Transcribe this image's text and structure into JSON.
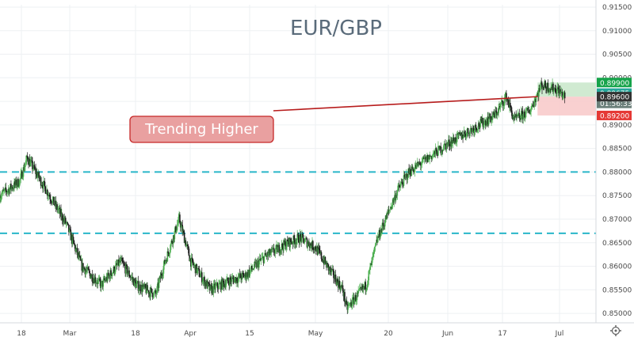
{
  "colors": {
    "background": "#ffffff",
    "grid": "#eef0f3",
    "up_candle": "#4caf50",
    "down_candle": "#1a1a1a",
    "hline": "#29b6c9",
    "title": "#5a6b7a",
    "callout_fill": "#e9a0a0",
    "callout_border": "#c62828",
    "trendline": "#b71c1c",
    "tp_zone": "#c8e6c9",
    "sl_zone": "#f8c8c8",
    "tag_green": "#16a34a",
    "tag_teal": "#26a69a",
    "tag_gray": "#6b7f7a",
    "tag_black": "#333333",
    "tag_red": "#e53935"
  },
  "chart_data": {
    "type": "candlestick",
    "title": "EUR/GBP",
    "x_tick_labels": [
      "18",
      "Mar",
      "18",
      "Apr",
      "15",
      "May",
      "20",
      "Jun",
      "17",
      "Jul"
    ],
    "ylim": [
      0.848,
      0.9155
    ],
    "y_tick_labels": [
      "0.91500",
      "0.91000",
      "0.90500",
      "0.90000",
      "0.89500",
      "0.89000",
      "0.88500",
      "0.88000",
      "0.87500",
      "0.87000",
      "0.86500",
      "0.86000",
      "0.85500",
      "0.85000"
    ],
    "grid": true,
    "approx_close_path": [
      {
        "x": "2019-02-08",
        "close": 0.875
      },
      {
        "x": "2019-02-13",
        "close": 0.878
      },
      {
        "x": "2019-02-15",
        "close": 0.883
      },
      {
        "x": "2019-02-20",
        "close": 0.876
      },
      {
        "x": "2019-02-25",
        "close": 0.869
      },
      {
        "x": "2019-03-01",
        "close": 0.86
      },
      {
        "x": "2019-03-06",
        "close": 0.856
      },
      {
        "x": "2019-03-11",
        "close": 0.861
      },
      {
        "x": "2019-03-15",
        "close": 0.856
      },
      {
        "x": "2019-03-20",
        "close": 0.854
      },
      {
        "x": "2019-03-22",
        "close": 0.86
      },
      {
        "x": "2019-03-26",
        "close": 0.87
      },
      {
        "x": "2019-03-29",
        "close": 0.861
      },
      {
        "x": "2019-04-03",
        "close": 0.855
      },
      {
        "x": "2019-04-08",
        "close": 0.857
      },
      {
        "x": "2019-04-12",
        "close": 0.858
      },
      {
        "x": "2019-04-17",
        "close": 0.862
      },
      {
        "x": "2019-04-23",
        "close": 0.865
      },
      {
        "x": "2019-04-26",
        "close": 0.866
      },
      {
        "x": "2019-04-30",
        "close": 0.864
      },
      {
        "x": "2019-05-03",
        "close": 0.86
      },
      {
        "x": "2019-05-07",
        "close": 0.855
      },
      {
        "x": "2019-05-08",
        "close": 0.851
      },
      {
        "x": "2019-05-13",
        "close": 0.856
      },
      {
        "x": "2019-05-16",
        "close": 0.866
      },
      {
        "x": "2019-05-21",
        "close": 0.876
      },
      {
        "x": "2019-05-24",
        "close": 0.88
      },
      {
        "x": "2019-05-29",
        "close": 0.883
      },
      {
        "x": "2019-06-03",
        "close": 0.886
      },
      {
        "x": "2019-06-07",
        "close": 0.888
      },
      {
        "x": "2019-06-12",
        "close": 0.8905
      },
      {
        "x": "2019-06-15",
        "close": 0.892
      },
      {
        "x": "2019-06-18",
        "close": 0.896
      },
      {
        "x": "2019-06-20",
        "close": 0.891
      },
      {
        "x": "2019-06-24",
        "close": 0.893
      },
      {
        "x": "2019-06-27",
        "close": 0.8985
      },
      {
        "x": "2019-07-01",
        "close": 0.8975
      },
      {
        "x": "2019-07-03",
        "close": 0.896
      }
    ],
    "horizontal_lines": [
      {
        "label": "support-high",
        "value": 0.88
      },
      {
        "label": "support-low",
        "value": 0.867
      }
    ],
    "trendline": {
      "y_start": 0.893,
      "y_end": 0.896
    },
    "callout": {
      "text": "Trending Higher"
    },
    "position_zones": [
      {
        "label": "take-profit",
        "from": 0.896,
        "to": 0.899
      },
      {
        "label": "stop-loss",
        "from": 0.892,
        "to": 0.896
      }
    ],
    "price_tags": [
      {
        "text": "0.89900",
        "value": 0.899,
        "color_key": "tag_green"
      },
      {
        "text": "0.89675",
        "value": 0.89675,
        "color_key": "tag_teal"
      },
      {
        "text": "01:56:33",
        "value": 0.8945,
        "color_key": "tag_gray"
      },
      {
        "text": "0.89600",
        "value": 0.896,
        "color_key": "tag_black"
      },
      {
        "text": "0.89200",
        "value": 0.892,
        "color_key": "tag_red"
      }
    ]
  },
  "icons": {
    "settings": "gear-icon"
  }
}
